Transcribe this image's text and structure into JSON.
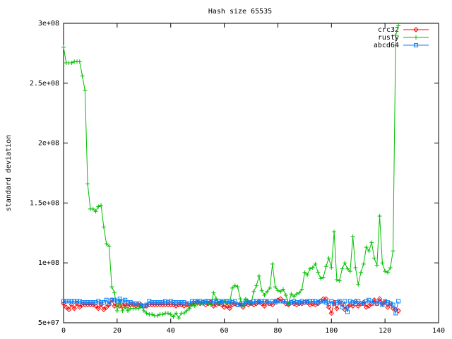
{
  "chart_data": {
    "type": "line",
    "title": "Hash size 65535",
    "y_label": "standard deviation",
    "x": [
      0,
      1,
      2,
      3,
      4,
      5,
      6,
      7,
      8,
      9,
      10,
      11,
      12,
      13,
      14,
      15,
      16,
      17,
      18,
      19,
      20,
      21,
      22,
      23,
      24,
      25,
      26,
      27,
      28,
      29,
      30,
      31,
      32,
      33,
      34,
      35,
      36,
      37,
      38,
      39,
      40,
      41,
      42,
      43,
      44,
      45,
      46,
      47,
      48,
      49,
      50,
      51,
      52,
      53,
      54,
      55,
      56,
      57,
      58,
      59,
      60,
      61,
      62,
      63,
      64,
      65,
      66,
      67,
      68,
      69,
      70,
      71,
      72,
      73,
      74,
      75,
      76,
      77,
      78,
      79,
      80,
      81,
      82,
      83,
      84,
      85,
      86,
      87,
      88,
      89,
      90,
      91,
      92,
      93,
      94,
      95,
      96,
      97,
      98,
      99,
      100,
      101,
      102,
      103,
      104,
      105,
      106,
      107,
      108,
      109,
      110,
      111,
      112,
      113,
      114,
      115,
      116,
      117,
      118,
      119,
      120,
      121,
      122,
      123,
      124,
      125
    ],
    "series": [
      {
        "name": "crc32",
        "color": "#ff0000",
        "marker": "diamond",
        "values": [
          66000000.0,
          63000000.0,
          61000000.0,
          65000000.0,
          62000000.0,
          66000000.0,
          63000000.0,
          65000000.0,
          65000000.0,
          65000000.0,
          65000000.0,
          65000000.0,
          64000000.0,
          62000000.0,
          65000000.0,
          61000000.0,
          63000000.0,
          65000000.0,
          69000000.0,
          64000000.0,
          65000000.0,
          64000000.0,
          64000000.0,
          66000000.0,
          64000000.0,
          65000000.0,
          65000000.0,
          64000000.0,
          65000000.0,
          65000000.0,
          64000000.0,
          64000000.0,
          65000000.0,
          65000000.0,
          65000000.0,
          65000000.0,
          65000000.0,
          65000000.0,
          65000000.0,
          65000000.0,
          65000000.0,
          65000000.0,
          64000000.0,
          65000000.0,
          65000000.0,
          64000000.0,
          65000000.0,
          64000000.0,
          66000000.0,
          66000000.0,
          67000000.0,
          66000000.0,
          67000000.0,
          65000000.0,
          66000000.0,
          67000000.0,
          64000000.0,
          65000000.0,
          66000000.0,
          65000000.0,
          63000000.0,
          64000000.0,
          62000000.0,
          65000000.0,
          66000000.0,
          65000000.0,
          66000000.0,
          63000000.0,
          66000000.0,
          65000000.0,
          67000000.0,
          65000000.0,
          66000000.0,
          68000000.0,
          66000000.0,
          64000000.0,
          67000000.0,
          66000000.0,
          65000000.0,
          68000000.0,
          69000000.0,
          70000000.0,
          68000000.0,
          66000000.0,
          65000000.0,
          67000000.0,
          66000000.0,
          65000000.0,
          66000000.0,
          66000000.0,
          67000000.0,
          67000000.0,
          65000000.0,
          66000000.0,
          65000000.0,
          66000000.0,
          68000000.0,
          70000000.0,
          70000000.0,
          63000000.0,
          58000000.0,
          67000000.0,
          62000000.0,
          67000000.0,
          66000000.0,
          61000000.0,
          63000000.0,
          65000000.0,
          64000000.0,
          68000000.0,
          64000000.0,
          66000000.0,
          67000000.0,
          63000000.0,
          64000000.0,
          66000000.0,
          69000000.0,
          66000000.0,
          70000000.0,
          66000000.0,
          67000000.0,
          63000000.0,
          66000000.0,
          62000000.0,
          61000000.0,
          60000000.0
        ]
      },
      {
        "name": "rusty",
        "color": "#00c000",
        "marker": "plus",
        "values": [
          280000000.0,
          267000000.0,
          267000000.0,
          267000000.0,
          268000000.0,
          268000000.0,
          268000000.0,
          256000000.0,
          244000000.0,
          166000000.0,
          145000000.0,
          145000000.0,
          143000000.0,
          147000000.0,
          148000000.0,
          130000000.0,
          116000000.0,
          114000000.0,
          80000000.0,
          75000000.0,
          60000000.0,
          68000000.0,
          60000000.0,
          63000000.0,
          60000000.0,
          62000000.0,
          62000000.0,
          62000000.0,
          62000000.0,
          64000000.0,
          60000000.0,
          58000000.0,
          57000000.0,
          57000000.0,
          56000000.0,
          56000000.0,
          57000000.0,
          57000000.0,
          58000000.0,
          58000000.0,
          57000000.0,
          55000000.0,
          58000000.0,
          54000000.0,
          58000000.0,
          58000000.0,
          60000000.0,
          62000000.0,
          65000000.0,
          64000000.0,
          66000000.0,
          66000000.0,
          66000000.0,
          68000000.0,
          66000000.0,
          65000000.0,
          75000000.0,
          70000000.0,
          66000000.0,
          68000000.0,
          68000000.0,
          66000000.0,
          66000000.0,
          79000000.0,
          81000000.0,
          80000000.0,
          70000000.0,
          64000000.0,
          70000000.0,
          68000000.0,
          66000000.0,
          76000000.0,
          81000000.0,
          89000000.0,
          77000000.0,
          73000000.0,
          76000000.0,
          79000000.0,
          99000000.0,
          80000000.0,
          77000000.0,
          76000000.0,
          78000000.0,
          73000000.0,
          66000000.0,
          74000000.0,
          72000000.0,
          74000000.0,
          75000000.0,
          78000000.0,
          92000000.0,
          90000000.0,
          95000000.0,
          96000000.0,
          99000000.0,
          92000000.0,
          87000000.0,
          88000000.0,
          97000000.0,
          104000000.0,
          96000000.0,
          126000000.0,
          86000000.0,
          85000000.0,
          95000000.0,
          100000000.0,
          95000000.0,
          93000000.0,
          122000000.0,
          96000000.0,
          82000000.0,
          92000000.0,
          99000000.0,
          113000000.0,
          110000000.0,
          117000000.0,
          104000000.0,
          98000000.0,
          139000000.0,
          100000000.0,
          93000000.0,
          92000000.0,
          96000000.0,
          110000000.0,
          290000000.0,
          298000000.0
        ]
      },
      {
        "name": "abcd64",
        "color": "#0080ff",
        "marker": "square",
        "values": [
          68000000.0,
          68000000.0,
          68000000.0,
          68000000.0,
          68000000.0,
          68000000.0,
          68000000.0,
          67000000.0,
          67000000.0,
          67000000.0,
          67000000.0,
          67000000.0,
          67000000.0,
          68000000.0,
          67000000.0,
          67000000.0,
          69000000.0,
          66000000.0,
          69000000.0,
          69000000.0,
          68000000.0,
          70000000.0,
          68000000.0,
          69000000.0,
          67000000.0,
          67000000.0,
          66000000.0,
          66000000.0,
          66000000.0,
          64000000.0,
          64000000.0,
          65000000.0,
          68000000.0,
          67000000.0,
          67000000.0,
          67000000.0,
          67000000.0,
          67000000.0,
          68000000.0,
          67000000.0,
          68000000.0,
          67000000.0,
          67000000.0,
          67000000.0,
          67000000.0,
          67000000.0,
          66000000.0,
          66000000.0,
          68000000.0,
          68000000.0,
          68000000.0,
          68000000.0,
          67000000.0,
          68000000.0,
          68000000.0,
          68000000.0,
          68000000.0,
          67000000.0,
          68000000.0,
          67000000.0,
          68000000.0,
          68000000.0,
          68000000.0,
          67000000.0,
          68000000.0,
          65000000.0,
          65000000.0,
          66000000.0,
          68000000.0,
          67000000.0,
          66000000.0,
          68000000.0,
          68000000.0,
          67000000.0,
          68000000.0,
          68000000.0,
          68000000.0,
          66000000.0,
          68000000.0,
          67000000.0,
          68000000.0,
          68000000.0,
          68000000.0,
          68000000.0,
          66000000.0,
          67000000.0,
          68000000.0,
          67000000.0,
          67000000.0,
          68000000.0,
          67000000.0,
          68000000.0,
          68000000.0,
          68000000.0,
          68000000.0,
          67000000.0,
          68000000.0,
          68000000.0,
          67000000.0,
          66000000.0,
          68000000.0,
          66000000.0,
          67000000.0,
          68000000.0,
          63000000.0,
          68000000.0,
          59000000.0,
          68000000.0,
          67000000.0,
          66000000.0,
          68000000.0,
          66000000.0,
          66000000.0,
          68000000.0,
          69000000.0,
          66000000.0,
          68000000.0,
          66000000.0,
          68000000.0,
          65000000.0,
          68000000.0,
          67000000.0,
          66000000.0,
          65000000.0,
          58000000.0,
          68000000.0
        ]
      }
    ],
    "xlim": [
      0,
      140
    ],
    "xticks": [
      0,
      20,
      40,
      60,
      80,
      100,
      120,
      140
    ],
    "ylim": [
      50000000,
      300000000
    ],
    "yticks": [
      {
        "value": 50000000,
        "label": "5e+07"
      },
      {
        "value": 100000000,
        "label": "1e+08"
      },
      {
        "value": 150000000,
        "label": "1.5e+08"
      },
      {
        "value": 200000000,
        "label": "2e+08"
      },
      {
        "value": 250000000,
        "label": "2.5e+08"
      },
      {
        "value": 300000000,
        "label": "3e+08"
      }
    ],
    "grid": false,
    "legend": "top-right"
  }
}
